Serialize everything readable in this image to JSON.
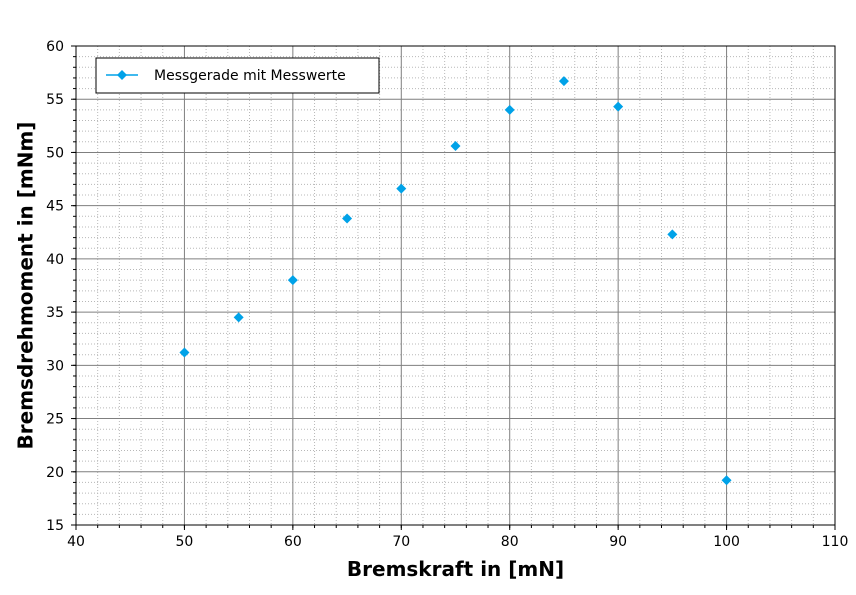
{
  "chart_data": {
    "type": "scatter",
    "title": "",
    "xlabel": "Bremskraft in [mN]",
    "ylabel": "Bremsdrehmoment in [mNm]",
    "xlim": [
      40,
      110
    ],
    "ylim": [
      15,
      60
    ],
    "x_major_step": 10,
    "y_major_step": 5,
    "x_minor_step": 2,
    "y_minor_step": 1,
    "grid": true,
    "legend_position": "top-left",
    "marker": "diamond",
    "series": [
      {
        "name": "Messgerade mit Messwerte",
        "color": "#00a2e8",
        "x": [
          50,
          55,
          60,
          65,
          70,
          75,
          80,
          85,
          90,
          95,
          100
        ],
        "y": [
          31.2,
          34.5,
          38.0,
          43.8,
          46.6,
          50.6,
          54.0,
          56.7,
          54.3,
          42.3,
          19.2
        ]
      }
    ]
  }
}
